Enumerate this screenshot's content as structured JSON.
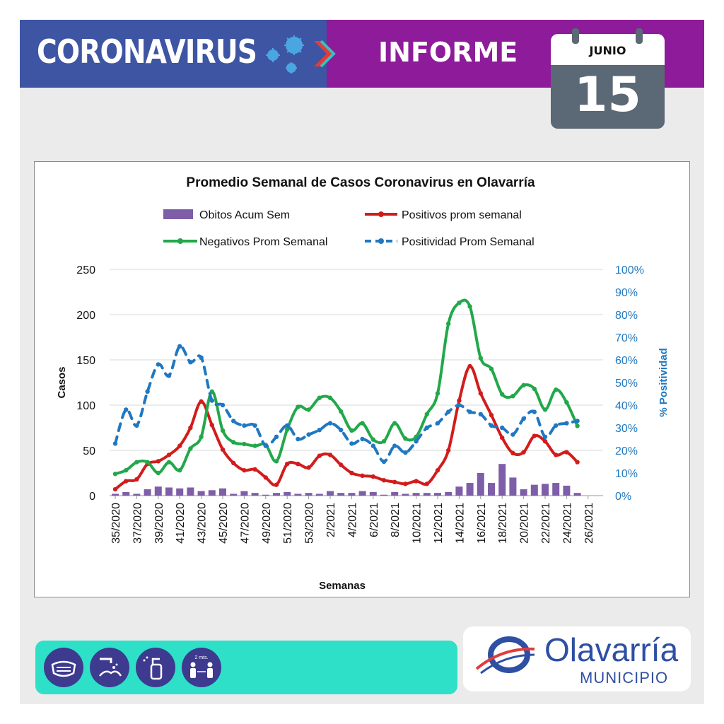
{
  "header": {
    "title": "CORONAVIRUS",
    "subtitle": "INFORME",
    "calendar": {
      "month": "JUNIO",
      "day": "15"
    },
    "colors": {
      "left": "#3d55a3",
      "right": "#8e1b99"
    }
  },
  "chart_data": {
    "type": "line",
    "title": "Promedio Semanal de Casos Coronavirus en Olavarría",
    "xlabel": "Semanas",
    "ylabel": "Casos",
    "y2label": "% Positividad",
    "ylim": [
      0,
      250
    ],
    "y2lim": [
      0,
      100
    ],
    "yticks": [
      "0",
      "50",
      "100",
      "150",
      "200",
      "250"
    ],
    "y2ticks": [
      "0%",
      "10%",
      "20%",
      "30%",
      "40%",
      "50%",
      "60%",
      "70%",
      "80%",
      "90%",
      "100%"
    ],
    "xtick_labels": [
      "35/2020",
      "37/2020",
      "39/2020",
      "41/2020",
      "43/2020",
      "45/2020",
      "47/2020",
      "49/2020",
      "51/2020",
      "53/2020",
      "2/2021",
      "4/2021",
      "6/2021",
      "8/2021",
      "10/2021",
      "12/2021",
      "14/2021",
      "16/2021",
      "18/2021",
      "20/2021",
      "22/2021",
      "24/2021",
      "26/2021"
    ],
    "grid": true,
    "legend_position": "top",
    "series": [
      {
        "name": "Obitos Acum Sem",
        "type": "bar",
        "axis": "left",
        "color": "#7e5ea8",
        "values": [
          2,
          4,
          2,
          7,
          10,
          9,
          8,
          9,
          5,
          6,
          8,
          2,
          5,
          3,
          1,
          3,
          4,
          2,
          3,
          2,
          5,
          3,
          3,
          5,
          4,
          1,
          4,
          2,
          3,
          3,
          3,
          4,
          10,
          14,
          25,
          14,
          35,
          20,
          7,
          12,
          13,
          14,
          11,
          3
        ]
      },
      {
        "name": "Positivos prom semanal",
        "type": "line",
        "axis": "left",
        "color": "#d21c1c",
        "values": [
          7,
          16,
          18,
          35,
          38,
          45,
          55,
          75,
          104,
          78,
          51,
          36,
          28,
          29,
          20,
          12,
          35,
          35,
          31,
          44,
          45,
          34,
          25,
          22,
          21,
          17,
          15,
          13,
          16,
          13,
          28,
          50,
          105,
          143,
          113,
          89,
          64,
          47,
          48,
          66,
          60,
          45,
          48,
          37
        ]
      },
      {
        "name": "Negativos Prom Semanal",
        "type": "line",
        "axis": "left",
        "color": "#22a84a",
        "values": [
          24,
          28,
          37,
          37,
          25,
          37,
          28,
          52,
          65,
          115,
          72,
          59,
          57,
          55,
          56,
          38,
          73,
          98,
          95,
          108,
          108,
          93,
          72,
          80,
          62,
          60,
          80,
          63,
          65,
          90,
          113,
          190,
          213,
          209,
          152,
          140,
          112,
          110,
          122,
          118,
          95,
          117,
          103,
          77
        ]
      },
      {
        "name": "Positividad Prom Semanal",
        "type": "line",
        "axis": "right",
        "dashed": true,
        "color": "#1f78c1",
        "values": [
          23,
          38,
          31,
          46,
          58,
          53,
          66,
          59,
          61,
          42,
          40,
          33,
          31,
          31,
          22,
          26,
          31,
          25,
          27,
          29,
          32,
          29,
          23,
          25,
          22,
          15,
          22,
          19,
          24,
          30,
          32,
          37,
          40,
          37,
          36,
          31,
          30,
          27,
          34,
          37,
          26,
          31,
          32,
          33
        ]
      }
    ]
  },
  "footer": {
    "icons": [
      "mask-icon",
      "handwash-icon",
      "sanitizer-icon",
      "distance-icon"
    ],
    "distance_label": "2 mts.",
    "logo": {
      "name": "Olavarría",
      "sub": "MUNICIPIO"
    }
  }
}
